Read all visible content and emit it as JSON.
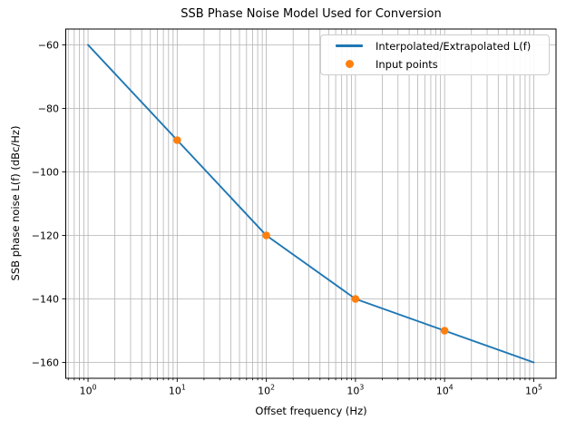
{
  "chart_data": {
    "type": "line",
    "title": "SSB Phase Noise Model Used for Conversion",
    "xlabel": "Offset frequency (Hz)",
    "ylabel": "SSB phase noise L(f)  (dBc/Hz)",
    "x_scale": "log10",
    "xlim_log10": [
      -0.25,
      5.25
    ],
    "ylim": [
      -165,
      -55
    ],
    "x_major_ticks": [
      {
        "value": 1,
        "base": "10",
        "exponent": "0"
      },
      {
        "value": 10,
        "base": "10",
        "exponent": "1"
      },
      {
        "value": 100,
        "base": "10",
        "exponent": "2"
      },
      {
        "value": 1000,
        "base": "10",
        "exponent": "3"
      },
      {
        "value": 10000,
        "base": "10",
        "exponent": "4"
      },
      {
        "value": 100000,
        "base": "10",
        "exponent": "5"
      }
    ],
    "y_ticks": [
      {
        "value": -60,
        "label": "−60"
      },
      {
        "value": -80,
        "label": "−80"
      },
      {
        "value": -100,
        "label": "−100"
      },
      {
        "value": -120,
        "label": "−120"
      },
      {
        "value": -140,
        "label": "−140"
      },
      {
        "value": -160,
        "label": "−160"
      }
    ],
    "grid": {
      "which": "both",
      "color": "#b3b3b3"
    },
    "legend_position": "upper right",
    "series": [
      {
        "name": "Interpolated/Extrapolated L(f)",
        "type": "line",
        "color": "#1f77b4",
        "x": [
          1,
          10,
          100,
          1000,
          10000,
          100000
        ],
        "y": [
          -60,
          -90,
          -120,
          -140,
          -150,
          -160
        ]
      },
      {
        "name": "Input points",
        "type": "scatter",
        "color": "#ff7f0e",
        "x": [
          10,
          100,
          1000,
          10000
        ],
        "y": [
          -90,
          -120,
          -140,
          -150
        ]
      }
    ]
  }
}
